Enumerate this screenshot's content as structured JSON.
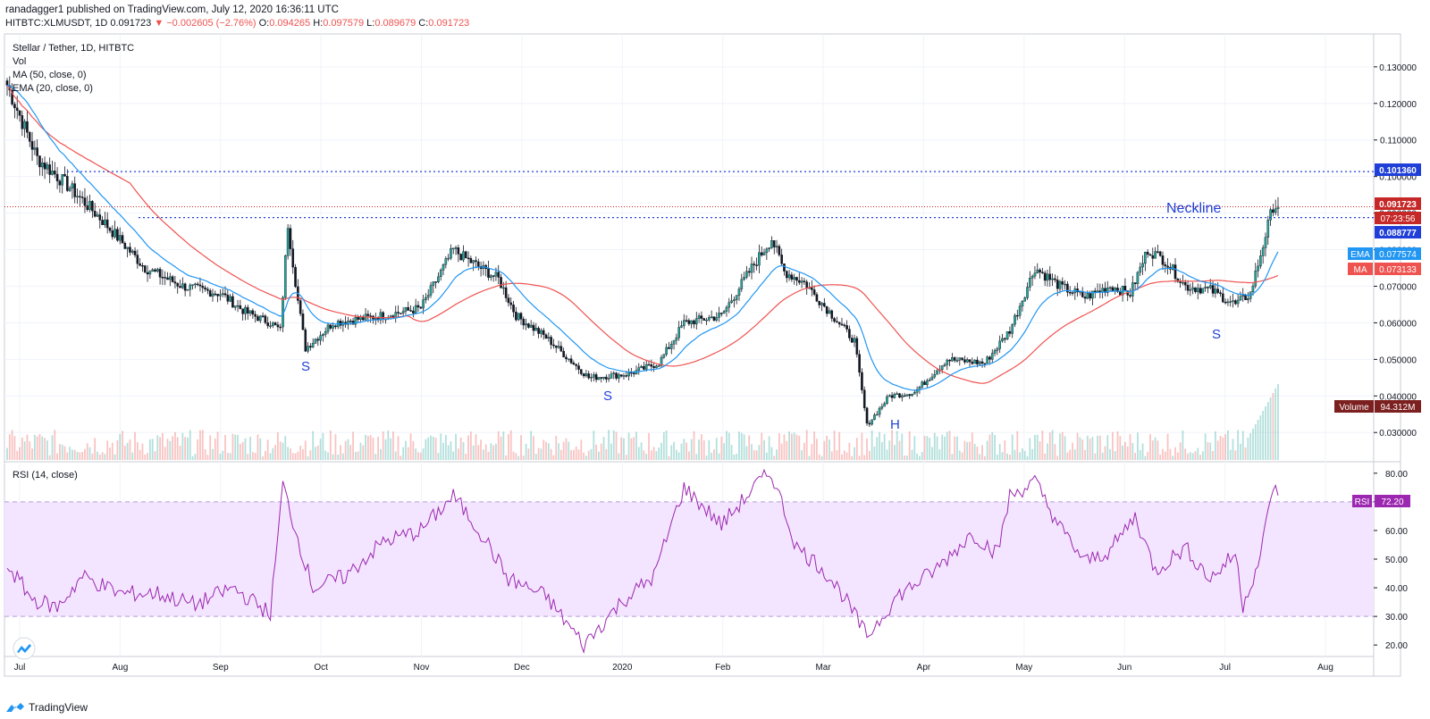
{
  "header": {
    "publisher": "ranadagger1 published on TradingView.com, July 12, 2020 16:36:11 UTC",
    "symbol": "HITBTC:XLMUSDT, 1D",
    "last": "0.091723",
    "change": "▼ −0.002605 (−2.76%)",
    "open_label": "O:",
    "open": "0.094265",
    "high_label": "H:",
    "high": "0.097579",
    "low_label": "L:",
    "low": "0.089679",
    "close_label": "C:",
    "close": "0.091723"
  },
  "legend": {
    "line1": "Stellar / Tether, 1D, HITBTC",
    "line2": "Vol",
    "line3": "MA (50, close, 0)",
    "line4": "EMA (20, close, 0)"
  },
  "rsi_legend": "RSI (14, close)",
  "annotations": {
    "neckline": "Neckline",
    "s1": "S",
    "s2": "S",
    "h": "H",
    "s3": "S"
  },
  "price_labels": {
    "resistance": "0.101360",
    "last": "0.091723",
    "countdown": "07:23:56",
    "neckline": "0.088777",
    "ema_tag": "EMA",
    "ema": "0.077574",
    "ma_tag": "MA",
    "ma": "0.073133",
    "volume_tag": "Volume",
    "volume": "94.312M",
    "rsi_tag": "RSI",
    "rsi": "72.20"
  },
  "colors": {
    "up": "#26a69a",
    "down": "#ef5350",
    "candle_body": "#131722",
    "ema": "#2196f3",
    "ma": "#ef5350",
    "rsi": "#9c27b0",
    "rsi_band": "#f3e5ff",
    "level": "#1f3fd8",
    "last_price": "#c62828",
    "volume_badge": "#7b1f1f"
  },
  "footer": {
    "brand": "TradingView",
    "logo_icon": "tradingview-logo-icon"
  },
  "chart_data": [
    {
      "type": "candlestick",
      "title": "Stellar / Tether, 1D, HITBTC",
      "x_labels": [
        "Jul",
        "Aug",
        "Sep",
        "Oct",
        "Nov",
        "Dec",
        "2020",
        "Feb",
        "Mar",
        "Apr",
        "May",
        "Jun",
        "Jul",
        "Aug"
      ],
      "y_ticks": [
        "0.130000",
        "0.120000",
        "0.110000",
        "0.100000",
        "0.090000",
        "0.080000",
        "0.070000",
        "0.060000",
        "0.050000",
        "0.040000",
        "0.030000"
      ],
      "ylim": [
        0.022,
        0.139
      ],
      "levels": {
        "resistance": 0.10136,
        "neckline": 0.088777,
        "last": 0.091723
      },
      "key_prices": [
        [
          0,
          0.125
        ],
        [
          12,
          0.105
        ],
        [
          25,
          0.097
        ],
        [
          38,
          0.088
        ],
        [
          55,
          0.075
        ],
        [
          70,
          0.07
        ],
        [
          85,
          0.068
        ],
        [
          95,
          0.063
        ],
        [
          105,
          0.06
        ],
        [
          109,
          0.058
        ],
        [
          112,
          0.087
        ],
        [
          116,
          0.066
        ],
        [
          119,
          0.053
        ],
        [
          130,
          0.06
        ],
        [
          150,
          0.062
        ],
        [
          165,
          0.064
        ],
        [
          178,
          0.08
        ],
        [
          182,
          0.078
        ],
        [
          196,
          0.072
        ],
        [
          203,
          0.062
        ],
        [
          215,
          0.056
        ],
        [
          232,
          0.045
        ],
        [
          248,
          0.046
        ],
        [
          260,
          0.049
        ],
        [
          270,
          0.06
        ],
        [
          285,
          0.062
        ],
        [
          297,
          0.075
        ],
        [
          305,
          0.083
        ],
        [
          310,
          0.074
        ],
        [
          318,
          0.071
        ],
        [
          328,
          0.063
        ],
        [
          338,
          0.055
        ],
        [
          343,
          0.032
        ],
        [
          352,
          0.04
        ],
        [
          362,
          0.041
        ],
        [
          375,
          0.05
        ],
        [
          390,
          0.049
        ],
        [
          400,
          0.058
        ],
        [
          410,
          0.075
        ],
        [
          420,
          0.07
        ],
        [
          430,
          0.067
        ],
        [
          440,
          0.07
        ],
        [
          448,
          0.068
        ],
        [
          455,
          0.08
        ],
        [
          462,
          0.077
        ],
        [
          470,
          0.07
        ],
        [
          480,
          0.069
        ],
        [
          490,
          0.065
        ],
        [
          496,
          0.068
        ],
        [
          505,
          0.092
        ],
        [
          507,
          0.0917
        ]
      ],
      "last_index": 507,
      "ema_period": 20,
      "ma_period": 50
    },
    {
      "type": "bar",
      "title": "Vol",
      "latest_volume": "94.312M"
    },
    {
      "type": "line",
      "title": "RSI (14, close)",
      "y_ticks": [
        "80.00",
        "70.00",
        "60.00",
        "50.00",
        "40.00",
        "30.00",
        "20.00"
      ],
      "ylim": [
        16,
        84
      ],
      "band": [
        30,
        70
      ],
      "x_labels": [
        "Jul",
        "Aug",
        "Sep",
        "Oct",
        "Nov",
        "Dec",
        "2020",
        "Feb",
        "Mar",
        "Apr",
        "May",
        "Jun",
        "Jul",
        "Aug"
      ],
      "key_values": [
        [
          0,
          48
        ],
        [
          10,
          36
        ],
        [
          20,
          33
        ],
        [
          30,
          44
        ],
        [
          45,
          38
        ],
        [
          60,
          38
        ],
        [
          75,
          34
        ],
        [
          90,
          40
        ],
        [
          105,
          31
        ],
        [
          110,
          76
        ],
        [
          116,
          57
        ],
        [
          122,
          40
        ],
        [
          135,
          44
        ],
        [
          150,
          56
        ],
        [
          165,
          60
        ],
        [
          178,
          72
        ],
        [
          190,
          58
        ],
        [
          200,
          43
        ],
        [
          215,
          37
        ],
        [
          230,
          20
        ],
        [
          245,
          35
        ],
        [
          258,
          44
        ],
        [
          270,
          75
        ],
        [
          285,
          62
        ],
        [
          300,
          77
        ],
        [
          305,
          80
        ],
        [
          315,
          54
        ],
        [
          325,
          47
        ],
        [
          333,
          38
        ],
        [
          343,
          23
        ],
        [
          355,
          37
        ],
        [
          370,
          46
        ],
        [
          385,
          59
        ],
        [
          395,
          52
        ],
        [
          400,
          72
        ],
        [
          410,
          77
        ],
        [
          420,
          61
        ],
        [
          430,
          49
        ],
        [
          440,
          53
        ],
        [
          450,
          65
        ],
        [
          458,
          46
        ],
        [
          470,
          54
        ],
        [
          480,
          43
        ],
        [
          490,
          52
        ],
        [
          493,
          34
        ],
        [
          500,
          51
        ],
        [
          505,
          76
        ],
        [
          507,
          72.2
        ]
      ],
      "latest": 72.2
    }
  ]
}
